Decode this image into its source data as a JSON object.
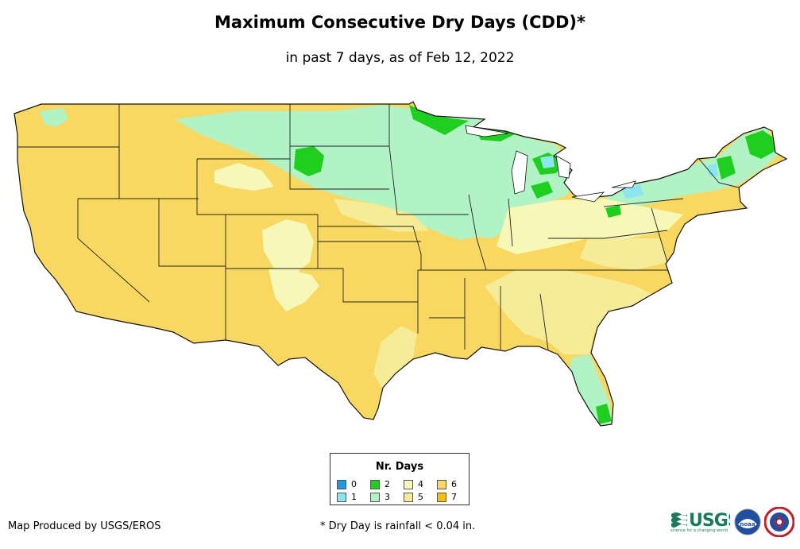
{
  "title": "Maximum Consecutive Dry Days (CDD)*",
  "subtitle": "in past 7 days, as of Feb 12, 2022",
  "legend": {
    "title": "Nr. Days",
    "items": [
      {
        "label": "0",
        "color": "#1e9be0"
      },
      {
        "label": "2",
        "color": "#1fcf1f"
      },
      {
        "label": "4",
        "color": "#f7f7b8"
      },
      {
        "label": "6",
        "color": "#f8d860"
      },
      {
        "label": "1",
        "color": "#8de5ef"
      },
      {
        "label": "3",
        "color": "#b2f3c6"
      },
      {
        "label": "5",
        "color": "#f6ec98"
      },
      {
        "label": "7",
        "color": "#f5c000"
      }
    ]
  },
  "credit": "Map Produced by USGS/EROS",
  "footnote": "* Dry Day is rainfall < 0.04 in.",
  "logos": {
    "usgs": "USGS",
    "usgs_tagline": "science for a changing world",
    "noaa": "noaa"
  },
  "map": {
    "region": "Contiguous United States",
    "base_color": "#f8d860",
    "colors": {
      "day1": "#8de5ef",
      "day2": "#1fcf1f",
      "day3": "#b2f3c6",
      "day4": "#f7f7b8",
      "day5": "#f6ec98",
      "day6": "#f8d860",
      "border": "#222222"
    }
  }
}
